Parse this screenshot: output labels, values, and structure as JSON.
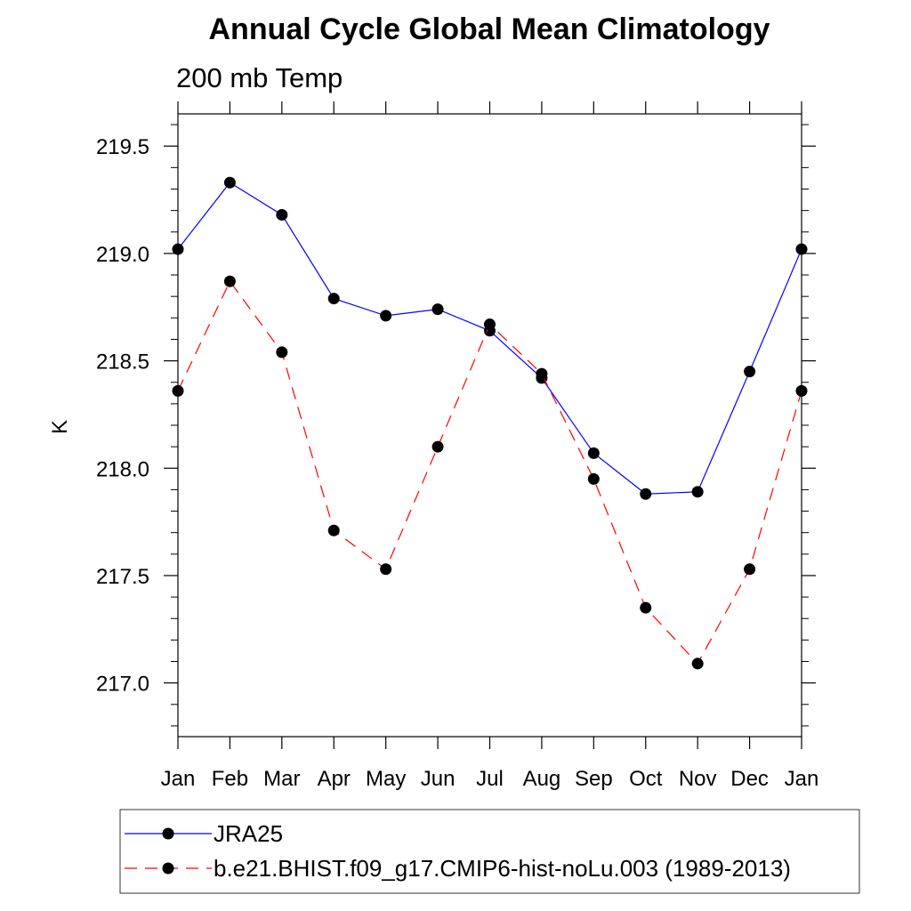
{
  "chart_data": {
    "type": "line",
    "title": "Annual Cycle Global Mean Climatology",
    "subtitle": "200 mb Temp",
    "xlabel": "",
    "ylabel": "K",
    "categories": [
      "Jan",
      "Feb",
      "Mar",
      "Apr",
      "May",
      "Jun",
      "Jul",
      "Aug",
      "Sep",
      "Oct",
      "Nov",
      "Dec",
      "Jan"
    ],
    "ylim": [
      216.75,
      219.65
    ],
    "yticks": [
      217.0,
      217.5,
      218.0,
      218.5,
      219.0,
      219.5
    ],
    "ytick_labels": [
      "217.0",
      "217.5",
      "218.0",
      "218.5",
      "219.0",
      "219.5"
    ],
    "series": [
      {
        "name": "JRA25",
        "color": "#0000ff",
        "dash": "solid",
        "values": [
          219.02,
          219.33,
          219.18,
          218.79,
          218.71,
          218.74,
          218.64,
          218.42,
          218.07,
          217.88,
          217.89,
          218.45,
          219.02
        ]
      },
      {
        "name": "b.e21.BHIST.f09_g17.CMIP6-hist-noLu.003 (1989-2013)",
        "color": "#ff0000",
        "dash": "dashed",
        "values": [
          218.36,
          218.87,
          218.54,
          217.71,
          217.53,
          218.1,
          218.67,
          218.44,
          217.95,
          217.35,
          217.09,
          217.53,
          218.36
        ]
      }
    ],
    "legend_position": "bottom"
  }
}
